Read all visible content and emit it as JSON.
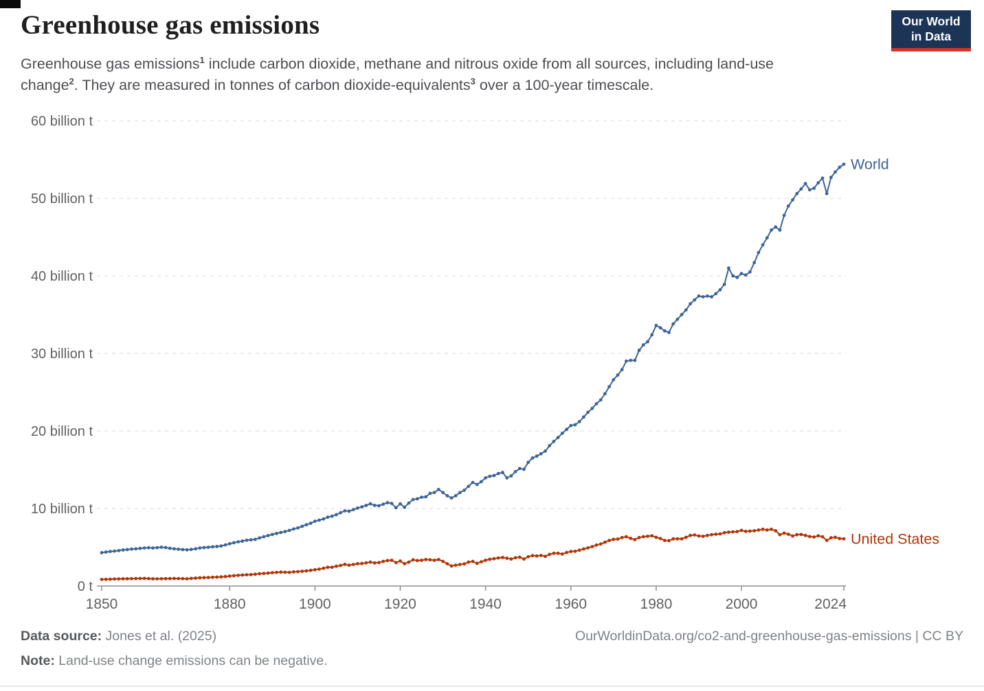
{
  "header": {
    "title": "Greenhouse gas emissions",
    "subtitle": {
      "s1": "Greenhouse gas emissions",
      "sup1": "1",
      "s2": " include carbon dioxide, methane and nitrous oxide from all sources, including land-use change",
      "sup2": "2",
      "s3": ". They are measured in tonnes of carbon dioxide-equivalents",
      "sup3": "3",
      "s4": " over a 100-year timescale."
    },
    "logo": {
      "line1": "Our World",
      "line2": "in Data"
    }
  },
  "footer": {
    "source_label": "Data source:",
    "source_value": "Jones et al. (2025)",
    "note_label": "Note:",
    "note_value": "Land-use change emissions can be negative.",
    "url": "OurWorldinData.org/co2-and-greenhouse-gas-emissions | CC BY"
  },
  "colors": {
    "world": "#3D6496",
    "united_states": "#B13507",
    "grid": "#DADADA",
    "axis": "#8F8F8F",
    "tick_label": "#606060",
    "logo_bg": "#1C3456",
    "logo_bar": "#D73327"
  },
  "chart_data": {
    "type": "line",
    "title": "Greenhouse gas emissions",
    "xlabel": "",
    "ylabel": "",
    "unit": "billion t CO₂-equivalents",
    "grid": "horizontal dashed",
    "legend_position": "line-end labels",
    "xlim": [
      1850,
      2024
    ],
    "ylim": [
      0,
      60
    ],
    "x_start": 1850,
    "x_step": 1,
    "x_ticks": [
      1850,
      1880,
      1900,
      1920,
      1940,
      1960,
      1980,
      2000,
      2024
    ],
    "y_ticks": [
      {
        "value": 0,
        "label": "0 t"
      },
      {
        "value": 10,
        "label": "10 billion t"
      },
      {
        "value": 20,
        "label": "20 billion t"
      },
      {
        "value": 30,
        "label": "30 billion t"
      },
      {
        "value": 40,
        "label": "40 billion t"
      },
      {
        "value": 50,
        "label": "50 billion t"
      },
      {
        "value": 60,
        "label": "60 billion t"
      }
    ],
    "series": [
      {
        "name": "World",
        "color": "#3D6496",
        "values": [
          4.3,
          4.38,
          4.45,
          4.5,
          4.57,
          4.65,
          4.7,
          4.76,
          4.8,
          4.85,
          4.9,
          4.94,
          4.9,
          4.95,
          5.0,
          4.96,
          4.87,
          4.8,
          4.74,
          4.7,
          4.66,
          4.72,
          4.8,
          4.9,
          4.96,
          5.0,
          5.05,
          5.1,
          5.16,
          5.3,
          5.45,
          5.58,
          5.7,
          5.8,
          5.9,
          5.96,
          6.02,
          6.2,
          6.35,
          6.5,
          6.65,
          6.78,
          6.9,
          7.02,
          7.18,
          7.35,
          7.5,
          7.7,
          7.9,
          8.1,
          8.35,
          8.5,
          8.65,
          8.88,
          9.0,
          9.2,
          9.45,
          9.7,
          9.65,
          9.85,
          10.05,
          10.2,
          10.4,
          10.6,
          10.4,
          10.35,
          10.55,
          10.75,
          10.65,
          10.1,
          10.6,
          10.15,
          10.7,
          11.15,
          11.25,
          11.45,
          11.5,
          11.95,
          12.05,
          12.45,
          12.05,
          11.65,
          11.35,
          11.65,
          12.05,
          12.35,
          12.85,
          13.35,
          13.1,
          13.45,
          13.95,
          14.15,
          14.25,
          14.5,
          14.65,
          13.95,
          14.2,
          14.75,
          15.15,
          15.05,
          15.95,
          16.5,
          16.75,
          17.05,
          17.4,
          18.1,
          18.65,
          19.15,
          19.7,
          20.2,
          20.7,
          20.8,
          21.2,
          21.8,
          22.4,
          22.9,
          23.5,
          24.0,
          24.8,
          25.7,
          26.6,
          27.2,
          27.9,
          29.0,
          29.1,
          29.1,
          30.4,
          31.1,
          31.5,
          32.4,
          33.6,
          33.3,
          32.9,
          32.7,
          33.8,
          34.4,
          35.0,
          35.6,
          36.4,
          36.9,
          37.4,
          37.3,
          37.4,
          37.3,
          37.7,
          38.2,
          38.9,
          41.0,
          40.0,
          39.8,
          40.3,
          40.1,
          40.5,
          41.7,
          43.0,
          44.0,
          44.9,
          45.9,
          46.3,
          45.9,
          47.8,
          49.0,
          49.8,
          50.6,
          51.2,
          51.9,
          51.1,
          51.3,
          52.0,
          52.6,
          50.6,
          52.7,
          53.4,
          54.0,
          54.4
        ]
      },
      {
        "name": "United States",
        "color": "#B13507",
        "values": [
          0.85,
          0.86,
          0.88,
          0.9,
          0.91,
          0.93,
          0.94,
          0.95,
          0.96,
          0.97,
          0.98,
          0.96,
          0.93,
          0.92,
          0.94,
          0.95,
          0.96,
          0.97,
          0.96,
          0.95,
          0.93,
          0.98,
          1.02,
          1.06,
          1.08,
          1.1,
          1.12,
          1.15,
          1.18,
          1.22,
          1.28,
          1.33,
          1.38,
          1.42,
          1.45,
          1.47,
          1.52,
          1.58,
          1.62,
          1.66,
          1.72,
          1.76,
          1.8,
          1.78,
          1.76,
          1.82,
          1.85,
          1.9,
          1.95,
          2.02,
          2.1,
          2.18,
          2.28,
          2.42,
          2.42,
          2.55,
          2.65,
          2.8,
          2.68,
          2.78,
          2.88,
          2.9,
          2.98,
          3.08,
          2.98,
          3.02,
          3.18,
          3.28,
          3.32,
          3.02,
          3.22,
          2.88,
          3.08,
          3.38,
          3.28,
          3.32,
          3.42,
          3.38,
          3.32,
          3.42,
          3.18,
          2.88,
          2.58,
          2.68,
          2.78,
          2.85,
          3.08,
          3.18,
          2.92,
          3.12,
          3.32,
          3.45,
          3.52,
          3.62,
          3.68,
          3.58,
          3.48,
          3.65,
          3.72,
          3.48,
          3.78,
          3.92,
          3.88,
          3.95,
          3.82,
          4.08,
          4.22,
          4.22,
          4.12,
          4.32,
          4.45,
          4.48,
          4.62,
          4.78,
          4.92,
          5.08,
          5.28,
          5.42,
          5.65,
          5.88,
          6.02,
          6.05,
          6.25,
          6.35,
          6.15,
          5.98,
          6.25,
          6.35,
          6.42,
          6.48,
          6.28,
          6.12,
          5.88,
          5.85,
          6.08,
          6.08,
          6.08,
          6.28,
          6.52,
          6.58,
          6.45,
          6.42,
          6.52,
          6.62,
          6.68,
          6.72,
          6.88,
          6.95,
          6.98,
          7.02,
          7.18,
          7.05,
          7.08,
          7.12,
          7.22,
          7.32,
          7.22,
          7.32,
          7.12,
          6.62,
          6.82,
          6.68,
          6.45,
          6.62,
          6.65,
          6.52,
          6.38,
          6.32,
          6.48,
          6.35,
          5.88,
          6.22,
          6.28,
          6.12,
          6.08
        ]
      }
    ]
  }
}
